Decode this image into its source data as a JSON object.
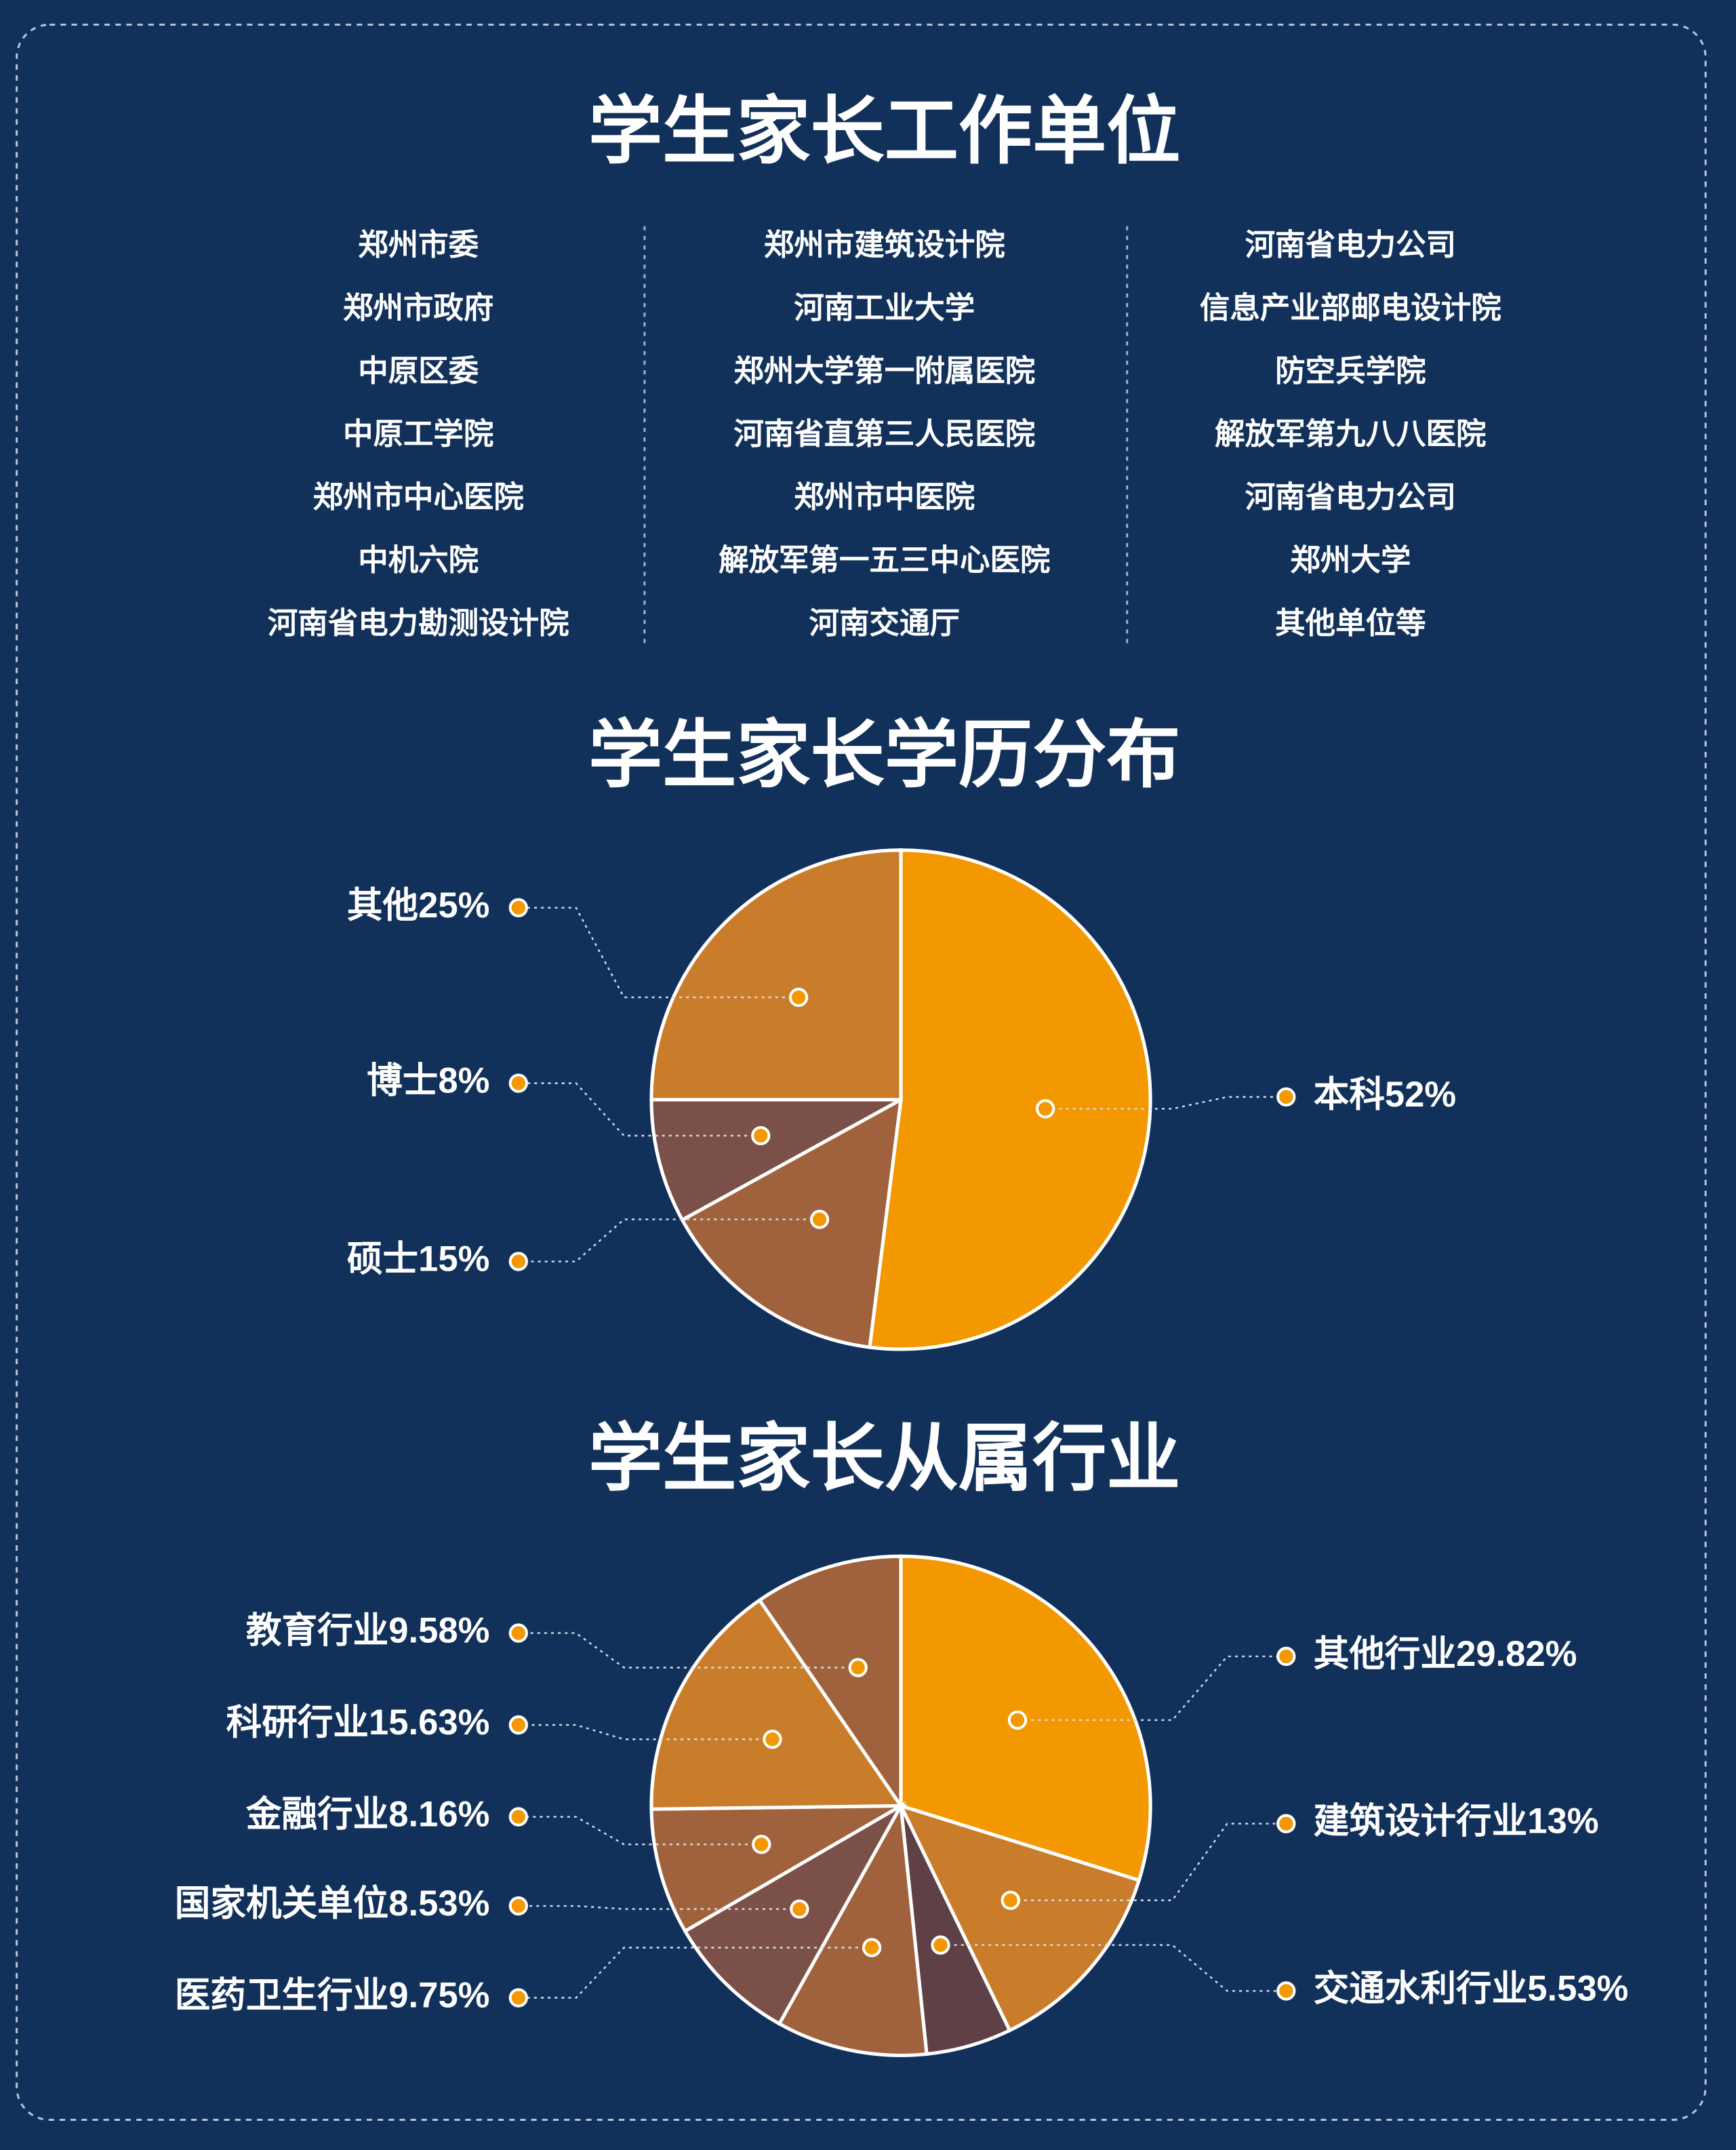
{
  "titles": [
    "学生家长工作单位",
    "学生家长学历分布",
    "学生家长从属行业"
  ],
  "units": {
    "columns": [
      [
        "郑州市委",
        "郑州市政府",
        "中原区委",
        "中原工学院",
        "郑州市中心医院",
        "中机六院",
        "河南省电力勘测设计院"
      ],
      [
        "郑州市建筑设计院",
        "河南工业大学",
        "郑州大学第一附属医院",
        "河南省直第三人民医院",
        "郑州市中医院",
        "解放军第一五三中心医院",
        "河南交通厅"
      ],
      [
        "河南省电力公司",
        "信息产业部邮电设计院",
        "防空兵学院",
        "解放军第九八八医院",
        "河南省电力公司",
        "郑州大学",
        "其他单位等"
      ]
    ]
  },
  "chart_data": [
    {
      "type": "pie",
      "categories": [
        "本科",
        "硕士",
        "博士",
        "其他"
      ],
      "values": [
        52,
        15,
        8,
        25
      ],
      "value_labels": [
        "52%",
        "15%",
        "8%",
        "25%"
      ],
      "colors": [
        "#f39800",
        "#a0623d",
        "#7a5048",
        "#c97d2a"
      ]
    },
    {
      "type": "pie",
      "categories": [
        "其他行业",
        "建筑设计行业",
        "交通水利行业",
        "医药卫生行业",
        "国家机关单位",
        "金融行业",
        "科研行业",
        "教育行业"
      ],
      "values": [
        29.82,
        13,
        5.53,
        9.75,
        8.53,
        8.16,
        15.63,
        9.58
      ],
      "value_labels": [
        "29.82%",
        "13%",
        "5.53%",
        "9.75%",
        "8.53%",
        "8.16%",
        "15.63%",
        "9.58%"
      ],
      "colors": [
        "#f39800",
        "#c97d2a",
        "#5e4046",
        "#a0623d",
        "#7a5048",
        "#a0623d",
        "#c97d2a",
        "#a0623d"
      ]
    }
  ]
}
